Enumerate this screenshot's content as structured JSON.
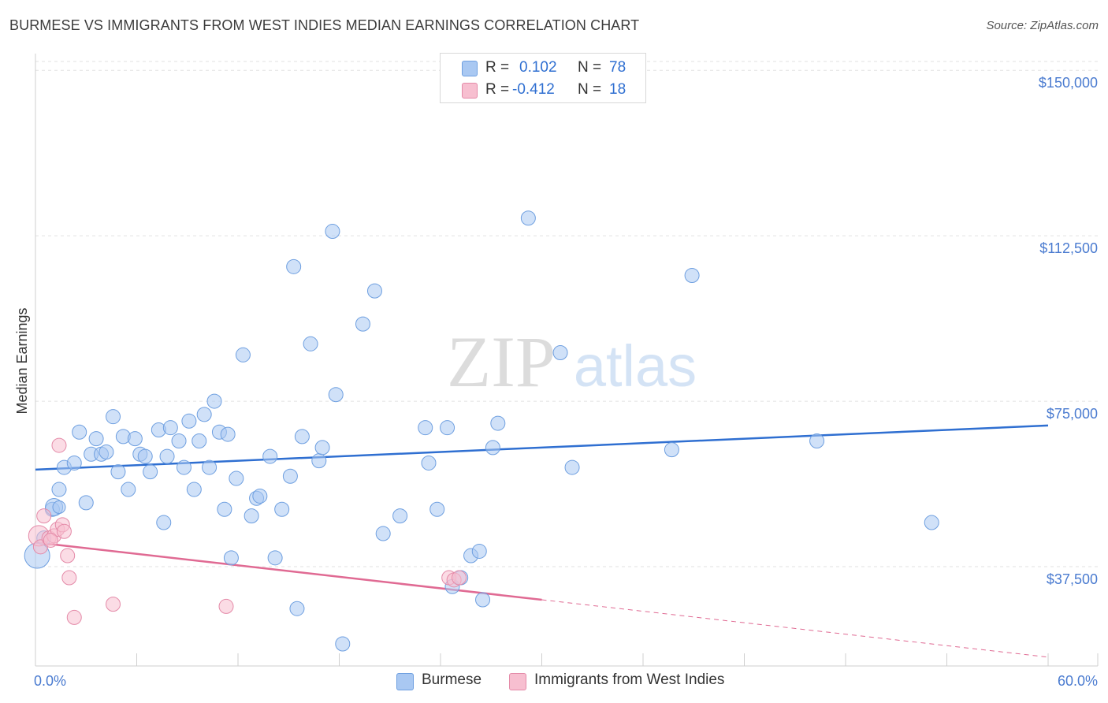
{
  "title": "BURMESE VS IMMIGRANTS FROM WEST INDIES MEDIAN EARNINGS CORRELATION CHART",
  "source": "Source: ZipAtlas.com",
  "watermark": {
    "zip": "ZIP",
    "atlas": "atlas"
  },
  "legend_top": {
    "rows": [
      {
        "r_label": "R =",
        "r_value": "0.102",
        "n_label": "N =",
        "n_value": "78",
        "color": "#a9c8f2",
        "border": "#6e9fe0"
      },
      {
        "r_label": "R =",
        "r_value": "-0.412",
        "n_label": "N =",
        "n_value": "18",
        "color": "#f7bfd0",
        "border": "#e48aa8"
      }
    ]
  },
  "legend_bottom": [
    {
      "label": "Burmese",
      "color": "#a9c8f2",
      "border": "#6e9fe0"
    },
    {
      "label": "Immigrants from West Indies",
      "color": "#f7bfd0",
      "border": "#e48aa8"
    }
  ],
  "chart_data": {
    "type": "scatter",
    "ylabel": "Median Earnings",
    "xlim": [
      0,
      60
    ],
    "ylim": [
      15000,
      152000
    ],
    "x_tick_labels": {
      "left": "0.0%",
      "right": "60.0%"
    },
    "y_ticks": [
      {
        "value": 37500,
        "label": "$37,500"
      },
      {
        "value": 75000,
        "label": "$75,000"
      },
      {
        "value": 112500,
        "label": "$112,500"
      },
      {
        "value": 150000,
        "label": "$150,000"
      }
    ],
    "grid": true,
    "series": [
      {
        "name": "Burmese",
        "color": "#a9c8f2",
        "stroke": "#6e9fe0",
        "trend": {
          "x": [
            0,
            60
          ],
          "y": [
            59500,
            69500
          ],
          "color": "#2f6fd1",
          "dashed_from": null
        },
        "points": [
          [
            0.1,
            40000,
            16
          ],
          [
            0.5,
            44000,
            9
          ],
          [
            1.0,
            50500,
            9
          ],
          [
            1.1,
            51000,
            11
          ],
          [
            1.4,
            55000,
            9
          ],
          [
            1.7,
            60000,
            9
          ],
          [
            2.3,
            61000,
            9
          ],
          [
            2.6,
            68000,
            9
          ],
          [
            3.0,
            52000,
            9
          ],
          [
            3.3,
            63000,
            9
          ],
          [
            3.6,
            66500,
            9
          ],
          [
            3.9,
            63000,
            9
          ],
          [
            4.2,
            63500,
            9
          ],
          [
            4.6,
            71500,
            9
          ],
          [
            4.9,
            59000,
            9
          ],
          [
            5.2,
            67000,
            9
          ],
          [
            5.5,
            55000,
            9
          ],
          [
            5.9,
            66500,
            9
          ],
          [
            6.2,
            63000,
            9
          ],
          [
            6.5,
            62500,
            9
          ],
          [
            6.8,
            59000,
            9
          ],
          [
            7.3,
            68500,
            9
          ],
          [
            7.6,
            47500,
            9
          ],
          [
            7.8,
            62500,
            9
          ],
          [
            8.0,
            69000,
            9
          ],
          [
            8.5,
            66000,
            9
          ],
          [
            8.8,
            60000,
            9
          ],
          [
            9.1,
            70500,
            9
          ],
          [
            9.4,
            55000,
            9
          ],
          [
            9.7,
            66000,
            9
          ],
          [
            10.0,
            72000,
            9
          ],
          [
            10.3,
            60000,
            9
          ],
          [
            10.6,
            75000,
            9
          ],
          [
            10.9,
            68000,
            9
          ],
          [
            11.2,
            50500,
            9
          ],
          [
            11.4,
            67500,
            9
          ],
          [
            11.6,
            39500,
            9
          ],
          [
            11.9,
            57500,
            9
          ],
          [
            12.3,
            85500,
            9
          ],
          [
            12.8,
            49000,
            9
          ],
          [
            13.1,
            53000,
            9
          ],
          [
            13.3,
            53500,
            9
          ],
          [
            13.9,
            62500,
            9
          ],
          [
            14.2,
            39500,
            9
          ],
          [
            14.6,
            50500,
            9
          ],
          [
            15.1,
            58000,
            9
          ],
          [
            15.3,
            105500,
            9
          ],
          [
            15.5,
            28000,
            9
          ],
          [
            15.8,
            67000,
            9
          ],
          [
            16.3,
            88000,
            9
          ],
          [
            16.8,
            61500,
            9
          ],
          [
            17.0,
            64500,
            9
          ],
          [
            17.6,
            113500,
            9
          ],
          [
            17.8,
            76500,
            9
          ],
          [
            18.2,
            20000,
            9
          ],
          [
            19.4,
            92500,
            9
          ],
          [
            20.1,
            100000,
            9
          ],
          [
            20.6,
            45000,
            9
          ],
          [
            21.6,
            49000,
            9
          ],
          [
            23.1,
            69000,
            9
          ],
          [
            23.3,
            61000,
            9
          ],
          [
            23.8,
            50500,
            9
          ],
          [
            24.4,
            69000,
            9
          ],
          [
            24.7,
            33000,
            9
          ],
          [
            25.2,
            35000,
            9
          ],
          [
            25.8,
            40000,
            9
          ],
          [
            26.3,
            41000,
            9
          ],
          [
            26.5,
            30000,
            9
          ],
          [
            27.1,
            64500,
            9
          ],
          [
            27.4,
            70000,
            9
          ],
          [
            29.2,
            116500,
            9
          ],
          [
            31.1,
            86000,
            9
          ],
          [
            31.8,
            60000,
            9
          ],
          [
            37.7,
            64000,
            9
          ],
          [
            38.9,
            103500,
            9
          ],
          [
            46.3,
            66000,
            9
          ],
          [
            53.1,
            47500,
            9
          ],
          [
            1.4,
            51000,
            8
          ]
        ]
      },
      {
        "name": "Immigrants from West Indies",
        "color": "#f7bfd0",
        "stroke": "#e48aa8",
        "trend": {
          "x": [
            0,
            60
          ],
          "y": [
            43000,
            17000
          ],
          "color": "#e06a93",
          "dashed_from": 30
        },
        "points": [
          [
            0.2,
            44500,
            13
          ],
          [
            0.3,
            42000,
            9
          ],
          [
            0.5,
            49000,
            9
          ],
          [
            0.8,
            44000,
            9
          ],
          [
            1.1,
            44500,
            9
          ],
          [
            1.3,
            46000,
            9
          ],
          [
            1.4,
            65000,
            9
          ],
          [
            1.6,
            47000,
            9
          ],
          [
            1.7,
            45500,
            9
          ],
          [
            1.9,
            40000,
            9
          ],
          [
            2.0,
            35000,
            9
          ],
          [
            2.3,
            26000,
            9
          ],
          [
            4.6,
            29000,
            9
          ],
          [
            11.3,
            28500,
            9
          ],
          [
            24.5,
            35000,
            9
          ],
          [
            24.8,
            34500,
            9
          ],
          [
            25.1,
            35000,
            9
          ],
          [
            0.9,
            43500,
            9
          ]
        ]
      }
    ]
  }
}
